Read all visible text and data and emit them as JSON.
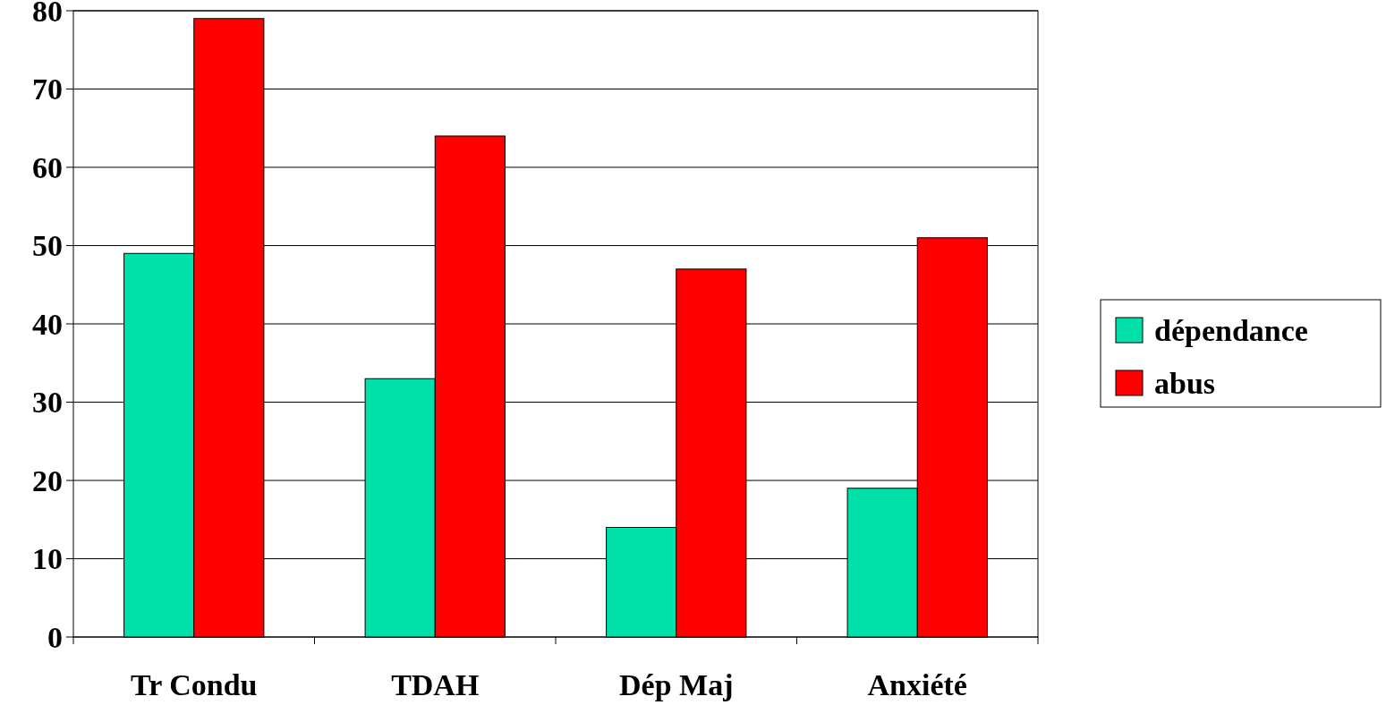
{
  "chart_data": {
    "type": "bar",
    "categories": [
      "Tr Condu",
      "TDAH",
      "Dép Maj",
      "Anxiété"
    ],
    "series": [
      {
        "name": "dépendance",
        "color": "#00e0a8",
        "values": [
          49,
          33,
          14,
          19
        ]
      },
      {
        "name": "abus",
        "color": "#ff0000",
        "values": [
          79,
          64,
          47,
          51
        ]
      }
    ],
    "ylim": [
      0,
      80
    ],
    "yticks": [
      0,
      10,
      20,
      30,
      40,
      50,
      60,
      70,
      80
    ],
    "grid": "y",
    "legend": "right"
  }
}
